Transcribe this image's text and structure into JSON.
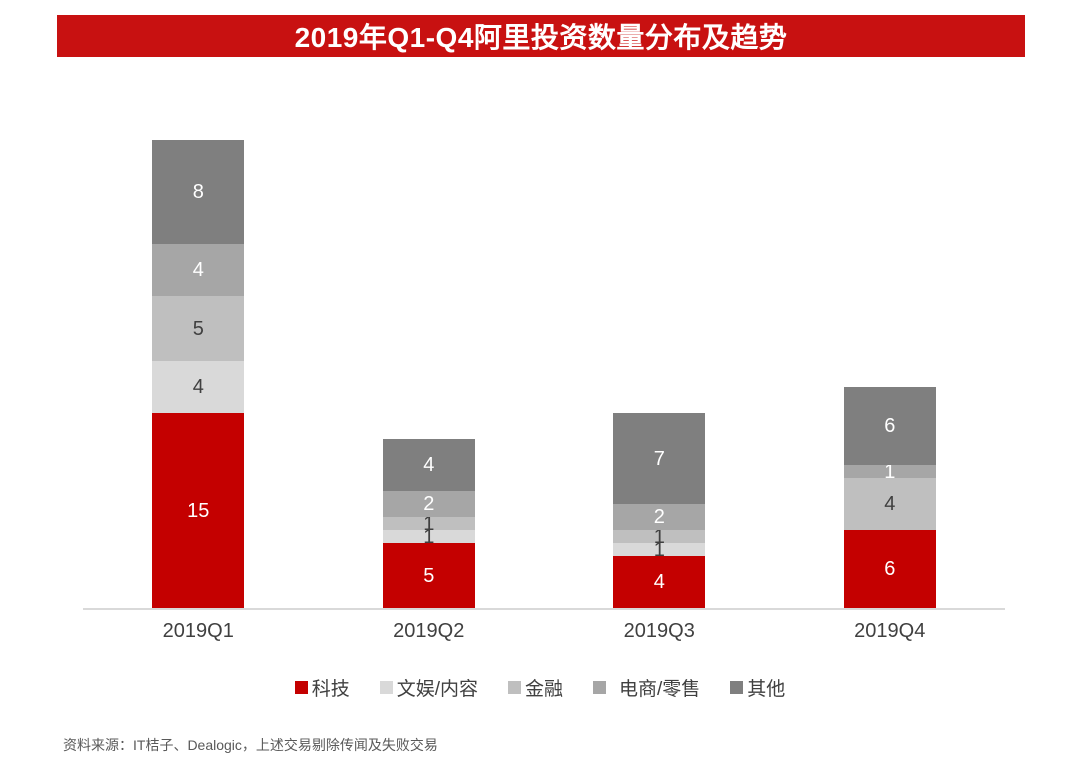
{
  "title": "2019年Q1-Q4阿里投资数量分布及趋势",
  "source_note": "资料来源：IT桔子、Dealogic，上述交易剔除传闻及失败交易",
  "colors": {
    "banner_background": "#c81111",
    "banner_text": "#ffffff",
    "axis_line": "#d9d9d9",
    "tick_label": "#404040"
  },
  "chart_data": {
    "type": "bar",
    "stacked": true,
    "title": "2019年Q1-Q4阿里投资数量分布及趋势",
    "categories": [
      "2019Q1",
      "2019Q2",
      "2019Q3",
      "2019Q4"
    ],
    "series": [
      {
        "name": "科技",
        "color": "#c40000",
        "label_color": "#ffffff",
        "values": [
          15,
          5,
          4,
          6
        ]
      },
      {
        "name": "文娱/内容",
        "color": "#d9d9d9",
        "label_color": "#404040",
        "values": [
          4,
          1,
          1,
          0
        ]
      },
      {
        "name": "金融",
        "color": "#bfbfbf",
        "label_color": "#404040",
        "values": [
          5,
          1,
          1,
          4
        ]
      },
      {
        "name": "电商/零售",
        "color": "#a6a6a6",
        "label_color": "#ffffff",
        "values": [
          4,
          2,
          2,
          1
        ]
      },
      {
        "name": "其他",
        "color": "#7f7f7f",
        "label_color": "#ffffff",
        "values": [
          8,
          4,
          7,
          6
        ]
      }
    ],
    "totals": [
      36,
      13,
      15,
      17
    ],
    "xlabel": "",
    "ylabel": "",
    "value_labels": true,
    "grid": false,
    "legend_position": "bottom"
  }
}
